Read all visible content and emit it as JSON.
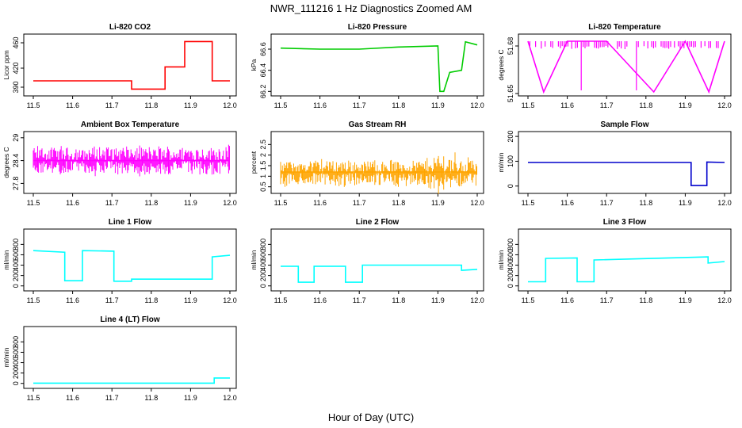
{
  "title": "NWR_111216  1 Hz Diagnostics Zoomed AM",
  "xlabel": "Hour of Day (UTC)",
  "chart_data": [
    {
      "type": "line",
      "title": "Li-820 CO2",
      "ylabel": "Licor ppm",
      "color": "#ff0000",
      "xlim": [
        11.5,
        12.0
      ],
      "ylim": [
        380,
        470
      ],
      "xticks": [
        "11.5",
        "11.6",
        "11.7",
        "11.8",
        "11.9",
        "12.0"
      ],
      "yticks": [
        390,
        420,
        460
      ],
      "series": [
        {
          "name": "CO2",
          "x": [
            11.5,
            11.75,
            11.75,
            11.835,
            11.835,
            11.835,
            11.835,
            11.885,
            11.885,
            11.955,
            11.955,
            12.0
          ],
          "y": [
            400,
            400,
            387,
            387,
            395,
            395,
            422,
            422,
            462,
            462,
            400,
            400
          ]
        }
      ]
    },
    {
      "type": "line",
      "title": "Li-820 Pressure",
      "ylabel": "kPa",
      "color": "#00cc00",
      "xlim": [
        11.5,
        12.0
      ],
      "ylim": [
        66.18,
        66.72
      ],
      "xticks": [
        "11.5",
        "11.6",
        "11.7",
        "11.8",
        "11.9",
        "12.0"
      ],
      "yticks": [
        66.2,
        66.4,
        66.6
      ],
      "series": [
        {
          "name": "Pressure",
          "x": [
            11.5,
            11.6,
            11.7,
            11.8,
            11.9,
            11.905,
            11.915,
            11.93,
            11.96,
            11.97,
            12.0
          ],
          "y": [
            66.61,
            66.6,
            66.6,
            66.62,
            66.63,
            66.2,
            66.2,
            66.38,
            66.4,
            66.67,
            66.64
          ]
        }
      ]
    },
    {
      "type": "line",
      "title": "Li-820 Temperature",
      "ylabel": "degrees C",
      "color": "#ff00ff",
      "xlim": [
        11.5,
        12.0
      ],
      "ylim": [
        51.65,
        51.686
      ],
      "xticks": [
        "11.5",
        "11.6",
        "11.7",
        "11.8",
        "11.9",
        "12.0"
      ],
      "yticks": [
        51.65,
        51.68
      ],
      "series": [
        {
          "name": "Temperature",
          "x": [
            11.5,
            11.54,
            11.6,
            11.7,
            11.82,
            11.9,
            11.96,
            12.0
          ],
          "y": [
            51.683,
            51.651,
            51.683,
            51.683,
            51.651,
            51.683,
            51.651,
            51.683
          ]
        }
      ]
    },
    {
      "type": "line",
      "title": "Ambient Box Temperature",
      "ylabel": "degrees C",
      "color": "#ff00ff",
      "xlim": [
        11.5,
        12.0
      ],
      "ylim": [
        27.6,
        29.1
      ],
      "xticks": [
        "11.5",
        "11.6",
        "11.7",
        "11.8",
        "11.9",
        "12.0"
      ],
      "yticks": [
        27.8,
        28.4,
        29.0
      ],
      "series": [
        {
          "name": "Box Temp",
          "x": [
            11.5,
            11.75,
            12.0
          ],
          "y": [
            28.4,
            28.4,
            28.4
          ]
        }
      ]
    },
    {
      "type": "line",
      "title": "Gas Stream RH",
      "ylabel": "percent",
      "color": "#ffa500",
      "xlim": [
        11.5,
        12.0
      ],
      "ylim": [
        0.3,
        3.0
      ],
      "xticks": [
        "11.5",
        "11.6",
        "11.7",
        "11.8",
        "11.9",
        "12.0"
      ],
      "yticks": [
        0.5,
        1.0,
        1.5,
        2.0,
        2.5
      ],
      "series": [
        {
          "name": "RH",
          "x": [
            11.5,
            11.75,
            12.0
          ],
          "y": [
            1.2,
            1.2,
            1.2
          ]
        }
      ]
    },
    {
      "type": "line",
      "title": "Sample Flow",
      "ylabel": "ml/min",
      "color": "#0000cc",
      "xlim": [
        11.5,
        12.0
      ],
      "ylim": [
        -20,
        210
      ],
      "xticks": [
        "11.5",
        "11.6",
        "11.7",
        "11.8",
        "11.9",
        "12.0"
      ],
      "yticks": [
        0,
        100,
        200
      ],
      "series": [
        {
          "name": "Sample Flow",
          "x": [
            11.5,
            11.915,
            11.915,
            11.955,
            11.955,
            12.0
          ],
          "y": [
            95,
            95,
            2,
            2,
            97,
            95
          ]
        }
      ]
    },
    {
      "type": "line",
      "title": "Line 1 Flow",
      "ylabel": "ml/min",
      "color": "#00ffff",
      "xlim": [
        11.5,
        12.0
      ],
      "ylim": [
        -50,
        1050
      ],
      "xticks": [
        "11.5",
        "11.6",
        "11.7",
        "11.8",
        "11.9",
        "12.0"
      ],
      "yticks": [
        0,
        200,
        400,
        600,
        800
      ],
      "series": [
        {
          "name": "Line 1",
          "x": [
            11.5,
            11.58,
            11.58,
            11.625,
            11.625,
            11.705,
            11.705,
            11.75,
            11.75,
            11.955,
            11.955,
            12.0
          ],
          "y": [
            680,
            650,
            100,
            100,
            680,
            670,
            90,
            90,
            130,
            130,
            560,
            590
          ]
        }
      ]
    },
    {
      "type": "line",
      "title": "Line 2 Flow",
      "ylabel": "ml/min",
      "color": "#00ffff",
      "xlim": [
        11.5,
        12.0
      ],
      "ylim": [
        -50,
        1050
      ],
      "xticks": [
        "11.5",
        "11.6",
        "11.7",
        "11.8",
        "11.9",
        "12.0"
      ],
      "yticks": [
        0,
        200,
        400,
        600,
        800
      ],
      "series": [
        {
          "name": "Line 2",
          "x": [
            11.5,
            11.545,
            11.545,
            11.585,
            11.585,
            11.665,
            11.665,
            11.708,
            11.708,
            11.96,
            11.96,
            12.0
          ],
          "y": [
            380,
            380,
            70,
            70,
            380,
            380,
            70,
            70,
            400,
            400,
            300,
            320
          ]
        }
      ]
    },
    {
      "type": "line",
      "title": "Line 3 Flow",
      "ylabel": "ml/min",
      "color": "#00ffff",
      "xlim": [
        11.5,
        12.0
      ],
      "ylim": [
        -50,
        1050
      ],
      "xticks": [
        "11.5",
        "11.6",
        "11.7",
        "11.8",
        "11.9",
        "12.0"
      ],
      "yticks": [
        0,
        200,
        400,
        600,
        800
      ],
      "series": [
        {
          "name": "Line 3",
          "x": [
            11.5,
            11.545,
            11.545,
            11.625,
            11.625,
            11.668,
            11.668,
            11.958,
            11.958,
            12.0
          ],
          "y": [
            80,
            80,
            530,
            540,
            80,
            80,
            500,
            560,
            440,
            470
          ]
        }
      ]
    },
    {
      "type": "line",
      "title": "Line 4 (LT) Flow",
      "ylabel": "ml/min",
      "color": "#00ffff",
      "xlim": [
        11.5,
        12.0
      ],
      "ylim": [
        -50,
        1050
      ],
      "xticks": [
        "11.5",
        "11.6",
        "11.7",
        "11.8",
        "11.9",
        "12.0"
      ],
      "yticks": [
        0,
        200,
        400,
        600,
        800
      ],
      "series": [
        {
          "name": "Line 4",
          "x": [
            11.5,
            11.96,
            11.96,
            12.0
          ],
          "y": [
            5,
            5,
            105,
            105
          ]
        }
      ]
    }
  ]
}
